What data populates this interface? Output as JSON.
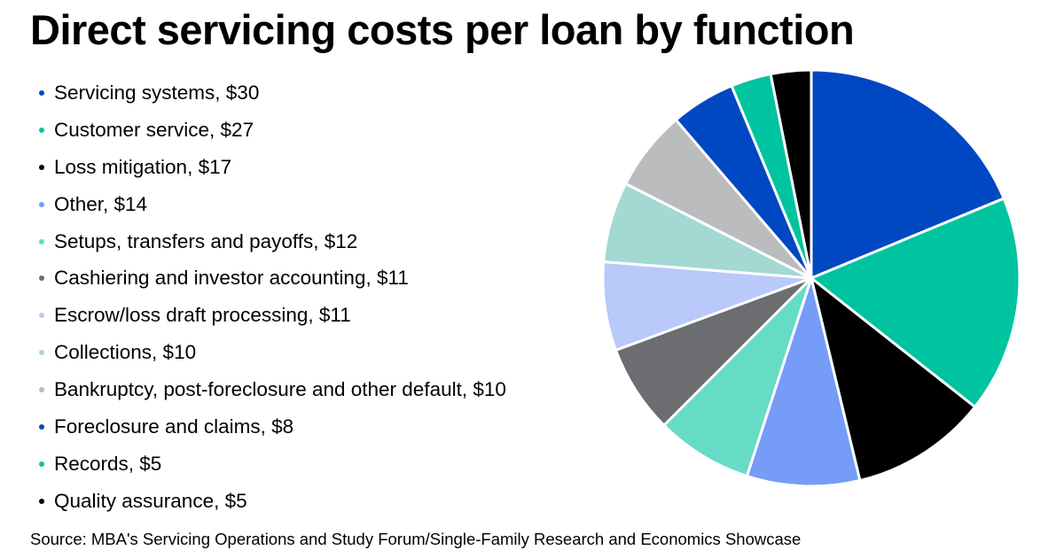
{
  "chart_data": {
    "type": "pie",
    "title": "Direct servicing costs per loan by function",
    "start_angle_deg": 0,
    "direction": "clockwise",
    "legend_position": "left",
    "slices": [
      {
        "label": "Servicing systems, $30",
        "value": 30,
        "color": "#0047c2"
      },
      {
        "label": "Customer service, $27",
        "value": 27,
        "color": "#00c49f"
      },
      {
        "label": "Loss mitigation, $17",
        "value": 17,
        "color": "#000000"
      },
      {
        "label": "Other, $14",
        "value": 14,
        "color": "#759cf7"
      },
      {
        "label": "Setups, transfers and payoffs, $12",
        "value": 12,
        "color": "#66dbc5"
      },
      {
        "label": "Cashiering and investor accounting, $11",
        "value": 11,
        "color": "#6b6d70"
      },
      {
        "label": "Escrow/loss draft processing, $11",
        "value": 11,
        "color": "#b8c9fa"
      },
      {
        "label": "Collections, $10",
        "value": 10,
        "color": "#a3d9d2"
      },
      {
        "label": "Bankruptcy, post-foreclosure and other default, $10",
        "value": 10,
        "color": "#bbbcbe"
      },
      {
        "label": "Foreclosure and claims, $8",
        "value": 8,
        "color": "#0047c2"
      },
      {
        "label": "Records, $5",
        "value": 5,
        "color": "#00c49f"
      },
      {
        "label": "Quality assurance, $5",
        "value": 5,
        "color": "#000000"
      }
    ]
  },
  "source": "Source: MBA's Servicing Operations and Study Forum/Single-Family Research and Economics Showcase"
}
